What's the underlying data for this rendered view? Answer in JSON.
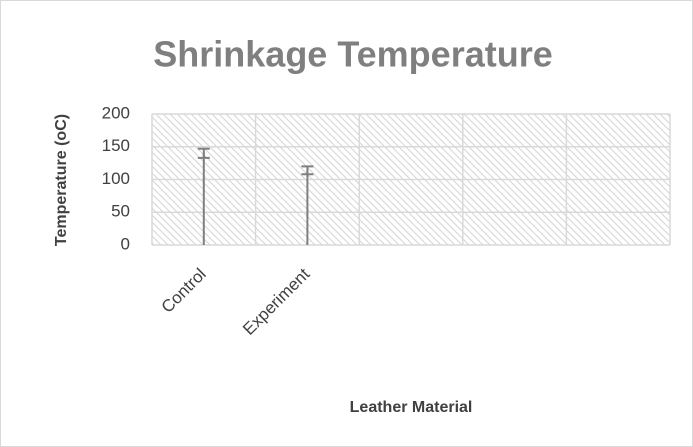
{
  "chart_data": {
    "type": "bar",
    "title": "Shrinkage Temperature",
    "x_label": "Leather Material",
    "y_label": "Temperature (oC)",
    "categories": [
      "Control",
      "Experiment",
      null,
      null,
      null
    ],
    "values": [
      140,
      114,
      null,
      null,
      null
    ],
    "errors": [
      7,
      6,
      null,
      null,
      null
    ],
    "color": "#7f7f7f",
    "ylim": [
      0,
      200
    ],
    "yticks": [
      0,
      50,
      100,
      150,
      200
    ],
    "grid": true
  }
}
